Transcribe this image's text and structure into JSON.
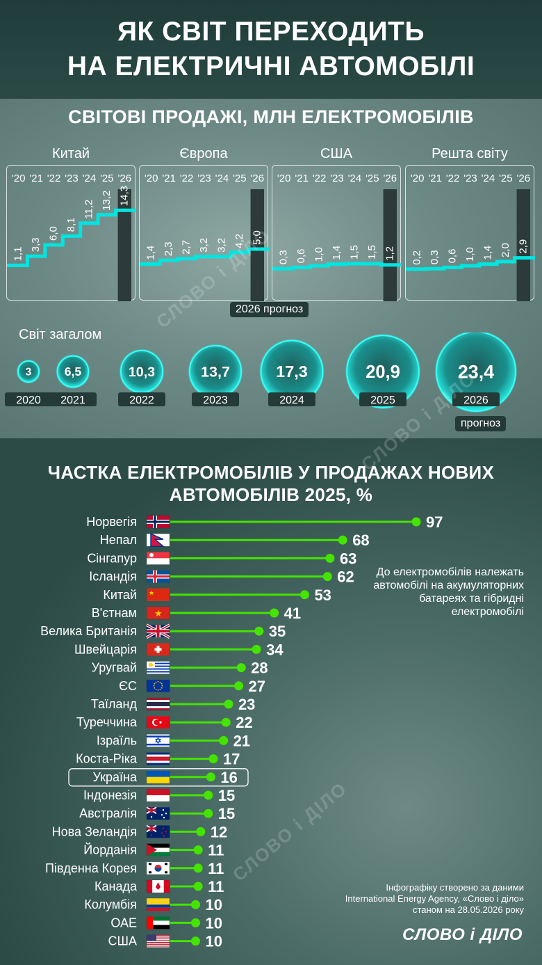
{
  "title": {
    "line1": "ЯК СВІТ ПЕРЕХОДИТЬ",
    "line2": "НА ЕЛЕКТРИЧНІ АВТОМОБІЛІ"
  },
  "colors": {
    "accent": "#00e5e0",
    "green": "#44e400",
    "bg_dark": "#2c4b47"
  },
  "chart_data": [
    {
      "type": "line",
      "title": "СВІТОВІ ПРОДАЖІ, МЛН ЕЛЕКТРОМОБІЛІВ",
      "categories": [
        "'20",
        "'21",
        "'22",
        "'23",
        "'24",
        "'25",
        "'26"
      ],
      "series": [
        {
          "name": "Китай",
          "values": [
            1.1,
            3.3,
            6.0,
            8.1,
            11.2,
            13.2,
            14.3
          ],
          "labels": [
            "1,1",
            "3,3",
            "6,0",
            "8,1",
            "11,2",
            "13,2",
            "14,3"
          ]
        },
        {
          "name": "Європа",
          "values": [
            1.4,
            2.3,
            2.7,
            3.2,
            3.2,
            4.2,
            5.0
          ],
          "labels": [
            "1,4",
            "2,3",
            "2,7",
            "3,2",
            "3,2",
            "4,2",
            "5,0"
          ]
        },
        {
          "name": "США",
          "values": [
            0.3,
            0.6,
            1.0,
            1.4,
            1.5,
            1.5,
            1.2
          ],
          "labels": [
            "0,3",
            "0,6",
            "1,0",
            "1,4",
            "1,5",
            "1,5",
            "1,2"
          ]
        },
        {
          "name": "Решта світу",
          "values": [
            0.2,
            0.3,
            0.6,
            1.0,
            1.4,
            2.0,
            2.9
          ],
          "labels": [
            "0,2",
            "0,3",
            "0,6",
            "1,0",
            "1,4",
            "2,0",
            "2,9"
          ]
        }
      ],
      "forecast_label": "2026 прогноз"
    },
    {
      "type": "bubble",
      "title": "Світ загалом",
      "x": [
        "2020",
        "2021",
        "2022",
        "2023",
        "2024",
        "2025",
        "2026"
      ],
      "values": [
        3,
        6.5,
        10.3,
        13.7,
        17.3,
        20.9,
        23.4
      ],
      "labels": [
        "3",
        "6,5",
        "10,3",
        "13,7",
        "17,3",
        "20,9",
        "23,4"
      ],
      "forecast_label": "прогноз"
    },
    {
      "type": "bar",
      "title": "ЧАСТКА ЕЛЕКТРОМОБІЛІВ У ПРОДАЖАХ НОВИХ АВТОМОБІЛІВ 2025, %",
      "title_line1": "ЧАСТКА ЕЛЕКТРОМОБІЛІВ У ПРОДАЖАХ НОВИХ",
      "title_line2": "АВТОМОБІЛІВ 2025, %",
      "categories": [
        "Норвегія",
        "Непал",
        "Сінгапур",
        "Ісландія",
        "Китай",
        "В'єтнам",
        "Велика Британія",
        "Швейцарія",
        "Уругвай",
        "ЄС",
        "Таїланд",
        "Туреччина",
        "Ізраїль",
        "Коста-Ріка",
        "Україна",
        "Індонезія",
        "Австралія",
        "Нова Зеландія",
        "Йорданія",
        "Південна Корея",
        "Канада",
        "Колумбія",
        "ОАЕ",
        "США"
      ],
      "values": [
        97,
        68,
        63,
        62,
        53,
        41,
        35,
        34,
        28,
        27,
        23,
        22,
        21,
        17,
        16,
        15,
        15,
        12,
        11,
        11,
        11,
        10,
        10,
        10
      ],
      "flags": [
        "norway-flag",
        "nepal-flag",
        "singapore-flag",
        "iceland-flag",
        "china-flag",
        "vietnam-flag",
        "uk-flag",
        "switzerland-flag",
        "uruguay-flag",
        "eu-flag",
        "thailand-flag",
        "turkey-flag",
        "israel-flag",
        "costa-rica-flag",
        "ukraine-flag",
        "indonesia-flag",
        "australia-flag",
        "new-zealand-flag",
        "jordan-flag",
        "south-korea-flag",
        "canada-flag",
        "colombia-flag",
        "uae-flag",
        "usa-flag"
      ],
      "highlight": "Україна"
    }
  ],
  "note": "До електромобілів належать автомобілі на акумуляторних батареях та гібридні електромобілі",
  "source": {
    "line1": "Інфографіку створено за даними",
    "line2": "International Energy Agency, «Слово і діло»",
    "line3": "станом на 28.05.2026 року"
  },
  "logo": "СЛОВО і ДІЛО",
  "watermark": "СЛОВО і ДІЛО"
}
